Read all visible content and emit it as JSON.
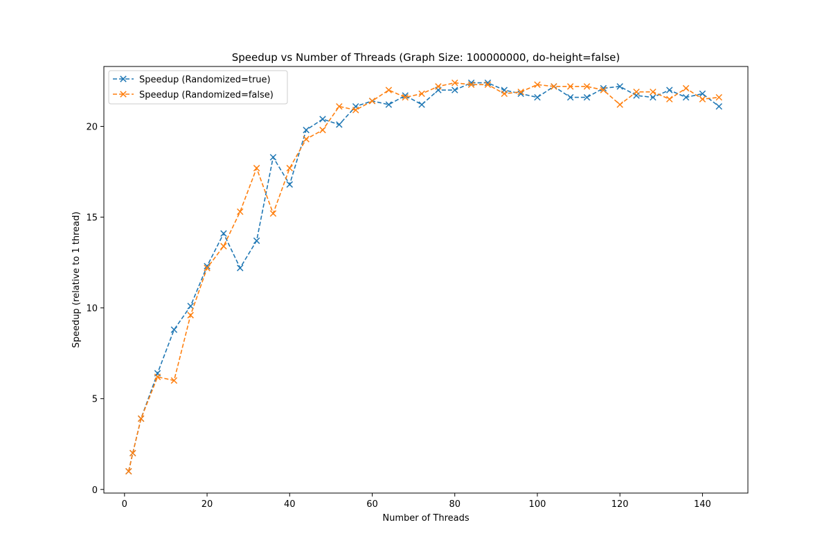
{
  "chart_data": {
    "type": "line",
    "title": "Speedup vs Number of Threads (Graph Size: 100000000, do-height=false)",
    "xlabel": "Number of Threads",
    "ylabel": "Speedup (relative to 1 thread)",
    "xlim": [
      -5,
      151
    ],
    "ylim": [
      -0.2,
      23.3
    ],
    "xticks": [
      0,
      20,
      40,
      60,
      80,
      100,
      120,
      140
    ],
    "yticks": [
      0,
      5,
      10,
      15,
      20
    ],
    "grid": false,
    "legend": "top-left",
    "x": [
      1,
      2,
      4,
      8,
      12,
      16,
      20,
      24,
      28,
      32,
      36,
      40,
      44,
      48,
      52,
      56,
      60,
      64,
      68,
      72,
      76,
      80,
      84,
      88,
      92,
      96,
      100,
      104,
      108,
      112,
      116,
      120,
      124,
      128,
      132,
      136,
      140,
      144
    ],
    "series": [
      {
        "name": "Speedup (Randomized=true)",
        "color": "#1f77b4",
        "marker": "x",
        "values": [
          1.0,
          2.0,
          3.9,
          6.4,
          8.8,
          10.1,
          12.3,
          14.1,
          12.2,
          13.7,
          18.3,
          16.8,
          19.8,
          20.4,
          20.1,
          21.1,
          21.4,
          21.2,
          21.7,
          21.2,
          22.0,
          22.0,
          22.4,
          22.4,
          22.0,
          21.8,
          21.6,
          22.2,
          21.6,
          21.6,
          22.1,
          22.2,
          21.7,
          21.6,
          22.0,
          21.6,
          21.8,
          21.1
        ]
      },
      {
        "name": "Speedup (Randomized=false)",
        "color": "#ff7f0e",
        "marker": "x",
        "values": [
          1.0,
          2.0,
          3.9,
          6.2,
          6.0,
          9.6,
          12.2,
          13.4,
          15.3,
          17.7,
          15.2,
          17.7,
          19.3,
          19.8,
          21.1,
          20.9,
          21.4,
          22.0,
          21.6,
          21.8,
          22.2,
          22.4,
          22.3,
          22.3,
          21.8,
          21.9,
          22.3,
          22.2,
          22.2,
          22.2,
          22.0,
          21.2,
          21.9,
          21.9,
          21.5,
          22.1,
          21.5,
          21.6
        ]
      }
    ]
  }
}
